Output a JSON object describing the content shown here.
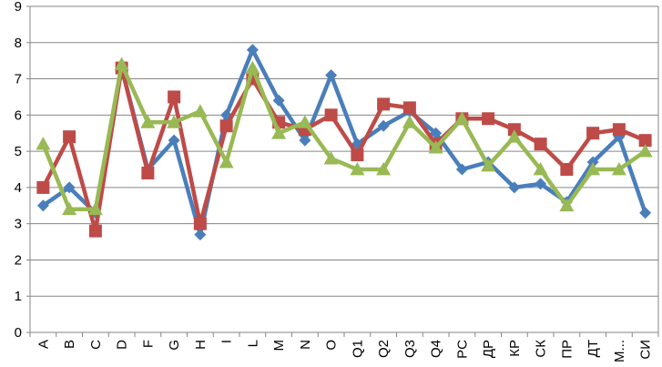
{
  "chart_data": {
    "type": "line",
    "categories": [
      "A",
      "B",
      "C",
      "D",
      "F",
      "G",
      "H",
      "I",
      "L",
      "M",
      "N",
      "O",
      "Q1",
      "Q2",
      "Q3",
      "Q4",
      "PC",
      "ДР",
      "КР",
      "СК",
      "ПР",
      "ДТ",
      "М...",
      "СИ"
    ],
    "ylim": [
      0,
      9
    ],
    "yticks": [
      0,
      1,
      2,
      3,
      4,
      5,
      6,
      7,
      8,
      9
    ],
    "grid": "horizontal",
    "legend": "none",
    "series": [
      {
        "color": "#4A7EBB",
        "marker": "diamond",
        "values": [
          3.5,
          4.0,
          3.3,
          7.3,
          4.5,
          5.3,
          2.7,
          6.0,
          7.8,
          6.4,
          5.3,
          7.1,
          5.2,
          5.7,
          6.1,
          5.5,
          4.5,
          4.7,
          4.0,
          4.1,
          3.6,
          4.7,
          5.4,
          3.3
        ]
      },
      {
        "color": "#BE4B48",
        "marker": "square",
        "values": [
          4.0,
          5.4,
          2.8,
          7.3,
          4.4,
          6.5,
          3.0,
          5.7,
          7.0,
          5.8,
          5.6,
          6.0,
          4.9,
          6.3,
          6.2,
          5.2,
          5.9,
          5.9,
          5.6,
          5.2,
          4.5,
          5.5,
          5.6,
          5.3
        ]
      },
      {
        "color": "#98B954",
        "marker": "triangle",
        "values": [
          5.2,
          3.4,
          3.4,
          7.4,
          5.8,
          5.8,
          6.1,
          4.7,
          7.3,
          5.5,
          5.8,
          4.8,
          4.5,
          4.5,
          5.8,
          5.1,
          5.9,
          4.6,
          5.4,
          4.5,
          3.5,
          4.5,
          4.5,
          5.0
        ]
      }
    ]
  }
}
